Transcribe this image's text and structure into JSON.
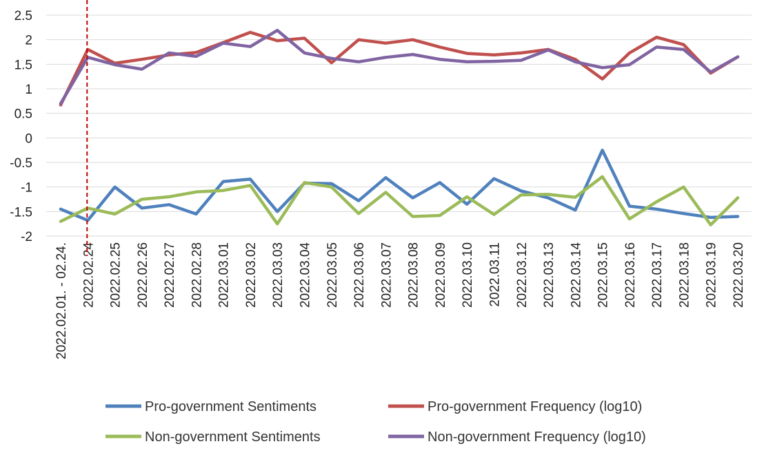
{
  "chart_data": {
    "type": "line",
    "title": "",
    "xlabel": "",
    "ylabel": "",
    "ylim": [
      -2,
      2.5
    ],
    "yticks": [
      2.5,
      2,
      1.5,
      1,
      0.5,
      0,
      -0.5,
      -1,
      -1.5,
      -2
    ],
    "ytick_labels": [
      "2.5",
      "2",
      "1.5",
      "1",
      "0.5",
      "0",
      "-0.5",
      "-1",
      "-1.5",
      "-2"
    ],
    "grid": true,
    "legend_position": "bottom",
    "categories": [
      "2022.02.01. - 02.24.",
      "2022.02.24",
      "2022.02.25",
      "2022.02.26",
      "2022.02.27",
      "2022.02.28",
      "2022.03.01",
      "2022.03.02",
      "2022.03.03",
      "2022.03.04",
      "2022.03.05",
      "2022.03.06",
      "2022.03.07",
      "2022.03.08",
      "2022.03.09",
      "2022.03.10",
      "2022.03.11",
      "2022.03.12",
      "2022.03.13",
      "2022.03.14",
      "2022.03.15",
      "2022.03.16",
      "2022.03.17",
      "2022.03.18",
      "2022.03.19",
      "2022.03.20"
    ],
    "marker_line": {
      "category_index": 1,
      "color": "#c00000",
      "style": "dashed"
    },
    "series": [
      {
        "name": "Pro-government Sentiments",
        "color": "#4f81bd",
        "values": [
          -1.45,
          -1.68,
          -1.0,
          -1.43,
          -1.36,
          -1.55,
          -0.89,
          -0.84,
          -1.5,
          -0.92,
          -0.93,
          -1.28,
          -0.81,
          -1.22,
          -0.91,
          -1.35,
          -0.83,
          -1.08,
          -1.22,
          -1.47,
          -0.25,
          -1.39,
          -1.45,
          -1.54,
          -1.62,
          -1.6
        ]
      },
      {
        "name": "Pro-government Frequency (log10)",
        "color": "#c0504d",
        "values": [
          0.67,
          1.8,
          1.52,
          1.6,
          1.69,
          1.74,
          1.94,
          2.15,
          1.98,
          2.03,
          1.53,
          2.0,
          1.93,
          2.0,
          1.85,
          1.72,
          1.69,
          1.73,
          1.8,
          1.6,
          1.2,
          1.73,
          2.05,
          1.9,
          1.32,
          1.65
        ]
      },
      {
        "name": "Non-government Sentiments",
        "color": "#9bbb59",
        "values": [
          -1.7,
          -1.43,
          -1.55,
          -1.25,
          -1.2,
          -1.1,
          -1.07,
          -0.97,
          -1.75,
          -0.91,
          -1.0,
          -1.54,
          -1.11,
          -1.6,
          -1.58,
          -1.2,
          -1.56,
          -1.16,
          -1.15,
          -1.21,
          -0.79,
          -1.65,
          -1.3,
          -1.0,
          -1.77,
          -1.22
        ]
      },
      {
        "name": "Non-government Frequency (log10)",
        "color": "#8064a2",
        "values": [
          0.7,
          1.64,
          1.49,
          1.4,
          1.73,
          1.66,
          1.93,
          1.86,
          2.19,
          1.73,
          1.62,
          1.55,
          1.64,
          1.7,
          1.6,
          1.55,
          1.56,
          1.58,
          1.79,
          1.55,
          1.43,
          1.49,
          1.85,
          1.8,
          1.34,
          1.65
        ]
      }
    ],
    "legend": [
      {
        "label": "Pro-government Sentiments",
        "color": "#4f81bd"
      },
      {
        "label": "Pro-government Frequency (log10)",
        "color": "#c0504d"
      },
      {
        "label": "Non-government Sentiments",
        "color": "#9bbb59"
      },
      {
        "label": "Non-government Frequency (log10)",
        "color": "#8064a2"
      }
    ]
  }
}
